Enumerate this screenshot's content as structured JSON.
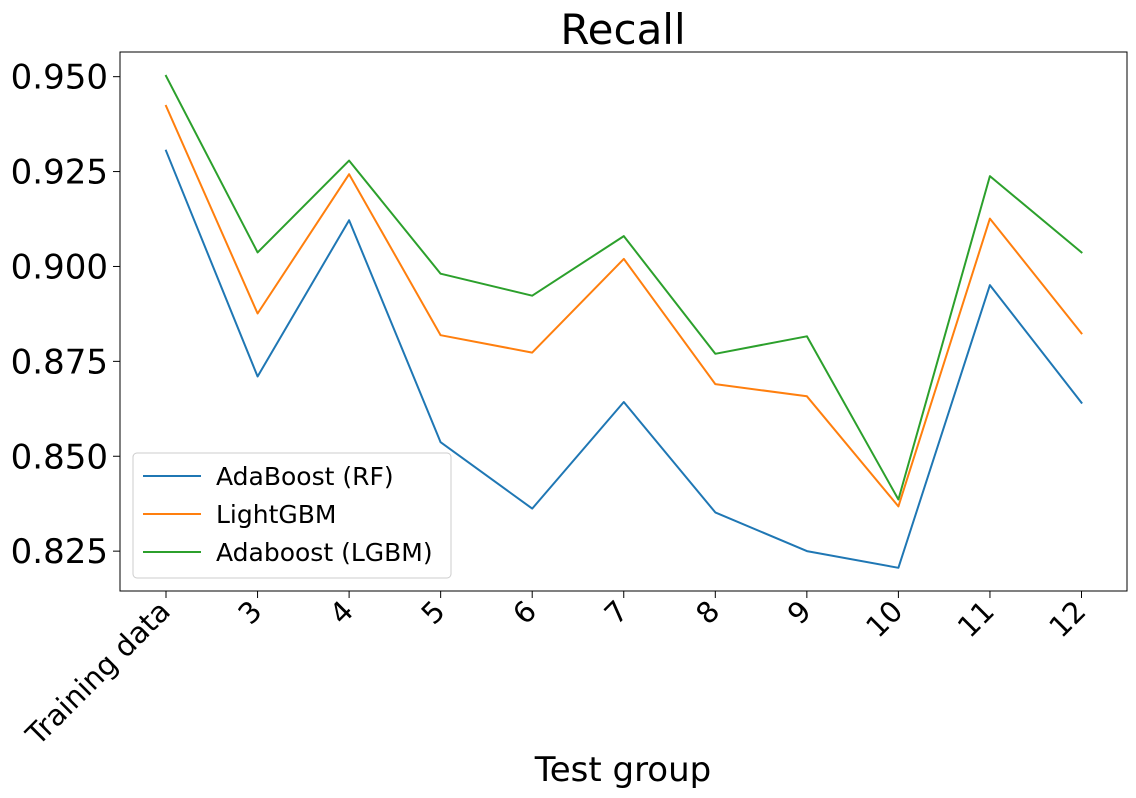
{
  "chart_data": {
    "type": "line",
    "title": "Recall",
    "xlabel": "Test group",
    "ylabel": "",
    "categories": [
      "Training data",
      "3",
      "4",
      "5",
      "6",
      "7",
      "8",
      "9",
      "10",
      "11",
      "12"
    ],
    "y_ticks": [
      "0.825",
      "0.850",
      "0.875",
      "0.900",
      "0.925",
      "0.950"
    ],
    "ylim": [
      0.8145,
      0.9565
    ],
    "grid": false,
    "legend_position": "lower-left",
    "series": [
      {
        "name": "AdaBoost (RF)",
        "color": "#1f77b4",
        "values": [
          0.9305,
          0.871,
          0.9122,
          0.8537,
          0.8362,
          0.8643,
          0.8352,
          0.825,
          0.8206,
          0.8951,
          0.8641
        ]
      },
      {
        "name": "LightGBM",
        "color": "#ff7f0e",
        "values": [
          0.9423,
          0.8876,
          0.9243,
          0.8819,
          0.8773,
          0.902,
          0.869,
          0.8658,
          0.8368,
          0.9126,
          0.8824
        ]
      },
      {
        "name": "Adaboost (LGBM)",
        "color": "#2ca02c",
        "values": [
          0.9502,
          0.9037,
          0.9279,
          0.8981,
          0.8923,
          0.908,
          0.877,
          0.8816,
          0.8386,
          0.9238,
          0.9037
        ]
      }
    ]
  }
}
